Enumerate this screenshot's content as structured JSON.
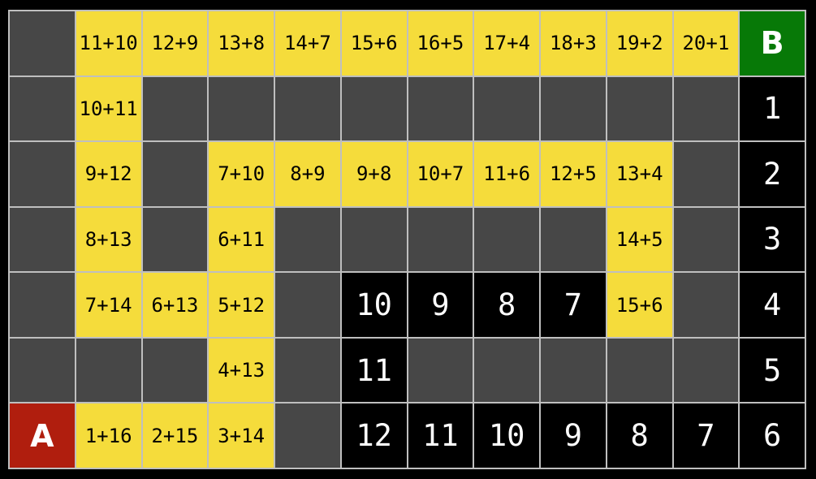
{
  "board": {
    "rows": 7,
    "cols": 12,
    "start_label": "A",
    "goal_label": "B",
    "colors": {
      "frame": "#000000",
      "gridline": "#bfbfbf",
      "wall": "#474747",
      "path": "#f5dc3b",
      "path_text": "#000000",
      "black": "#000000",
      "black_text": "#ffffff",
      "start": "#b01e0e",
      "goal": "#077907"
    },
    "cells": [
      [
        {
          "type": "wall"
        },
        {
          "type": "path",
          "label": "11+10"
        },
        {
          "type": "path",
          "label": "12+9"
        },
        {
          "type": "path",
          "label": "13+8"
        },
        {
          "type": "path",
          "label": "14+7"
        },
        {
          "type": "path",
          "label": "15+6"
        },
        {
          "type": "path",
          "label": "16+5"
        },
        {
          "type": "path",
          "label": "17+4"
        },
        {
          "type": "path",
          "label": "18+3"
        },
        {
          "type": "path",
          "label": "19+2"
        },
        {
          "type": "path",
          "label": "20+1"
        },
        {
          "type": "goal",
          "label": "B"
        }
      ],
      [
        {
          "type": "wall"
        },
        {
          "type": "path",
          "label": "10+11"
        },
        {
          "type": "wall"
        },
        {
          "type": "wall"
        },
        {
          "type": "wall"
        },
        {
          "type": "wall"
        },
        {
          "type": "wall"
        },
        {
          "type": "wall"
        },
        {
          "type": "wall"
        },
        {
          "type": "wall"
        },
        {
          "type": "wall"
        },
        {
          "type": "number",
          "label": "1"
        }
      ],
      [
        {
          "type": "wall"
        },
        {
          "type": "path",
          "label": "9+12"
        },
        {
          "type": "wall"
        },
        {
          "type": "path",
          "label": "7+10"
        },
        {
          "type": "path",
          "label": "8+9"
        },
        {
          "type": "path",
          "label": "9+8"
        },
        {
          "type": "path",
          "label": "10+7"
        },
        {
          "type": "path",
          "label": "11+6"
        },
        {
          "type": "path",
          "label": "12+5"
        },
        {
          "type": "path",
          "label": "13+4"
        },
        {
          "type": "wall"
        },
        {
          "type": "number",
          "label": "2"
        }
      ],
      [
        {
          "type": "wall"
        },
        {
          "type": "path",
          "label": "8+13"
        },
        {
          "type": "wall"
        },
        {
          "type": "path",
          "label": "6+11"
        },
        {
          "type": "wall"
        },
        {
          "type": "wall"
        },
        {
          "type": "wall"
        },
        {
          "type": "wall"
        },
        {
          "type": "wall"
        },
        {
          "type": "path",
          "label": "14+5"
        },
        {
          "type": "wall"
        },
        {
          "type": "number",
          "label": "3"
        }
      ],
      [
        {
          "type": "wall"
        },
        {
          "type": "path",
          "label": "7+14"
        },
        {
          "type": "path",
          "label": "6+13"
        },
        {
          "type": "path",
          "label": "5+12"
        },
        {
          "type": "wall"
        },
        {
          "type": "number",
          "label": "10"
        },
        {
          "type": "number",
          "label": "9"
        },
        {
          "type": "number",
          "label": "8"
        },
        {
          "type": "number",
          "label": "7"
        },
        {
          "type": "path",
          "label": "15+6"
        },
        {
          "type": "wall"
        },
        {
          "type": "number",
          "label": "4"
        }
      ],
      [
        {
          "type": "wall"
        },
        {
          "type": "wall"
        },
        {
          "type": "wall"
        },
        {
          "type": "path",
          "label": "4+13"
        },
        {
          "type": "wall"
        },
        {
          "type": "number",
          "label": "11"
        },
        {
          "type": "wall"
        },
        {
          "type": "wall"
        },
        {
          "type": "wall"
        },
        {
          "type": "wall"
        },
        {
          "type": "wall"
        },
        {
          "type": "number",
          "label": "5"
        }
      ],
      [
        {
          "type": "start",
          "label": "A"
        },
        {
          "type": "path",
          "label": "1+16"
        },
        {
          "type": "path",
          "label": "2+15"
        },
        {
          "type": "path",
          "label": "3+14"
        },
        {
          "type": "wall"
        },
        {
          "type": "number",
          "label": "12"
        },
        {
          "type": "number",
          "label": "11"
        },
        {
          "type": "number",
          "label": "10"
        },
        {
          "type": "number",
          "label": "9"
        },
        {
          "type": "number",
          "label": "8"
        },
        {
          "type": "number",
          "label": "7"
        },
        {
          "type": "number",
          "label": "6"
        }
      ]
    ]
  }
}
